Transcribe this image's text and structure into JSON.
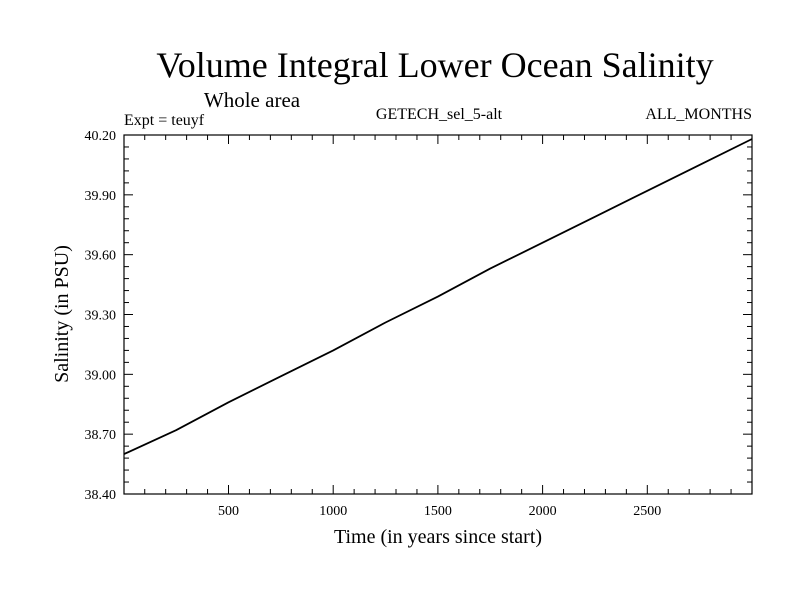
{
  "chart_data": {
    "type": "line",
    "title": "Volume Integral Lower Ocean Salinity",
    "subtitle": "Whole area",
    "expt_label": "Expt = teuyf",
    "run_label": "GETECH_sel_5-alt",
    "months_label": "ALL_MONTHS",
    "xlabel": "Time (in years since start)",
    "ylabel": "Salinity (in PSU)",
    "xlim": [
      1,
      3000
    ],
    "ylim": [
      38.4,
      40.2
    ],
    "x_ticks": [
      500,
      1000,
      1500,
      2000,
      2500
    ],
    "x_tick_labels": [
      "500",
      "1000",
      "1500",
      "2000",
      "2500"
    ],
    "y_ticks": [
      38.4,
      38.7,
      39.0,
      39.3,
      39.6,
      39.9,
      40.2
    ],
    "y_tick_labels": [
      "38.40",
      "38.70",
      "39.00",
      "39.30",
      "39.60",
      "39.90",
      "40.20"
    ],
    "grid": false,
    "series": [
      {
        "x": [
          1,
          250,
          500,
          750,
          1000,
          1250,
          1500,
          1750,
          2000,
          2250,
          2500,
          2750,
          3000
        ],
        "values": [
          38.6,
          38.72,
          38.86,
          38.99,
          39.12,
          39.26,
          39.39,
          39.53,
          39.66,
          39.79,
          39.92,
          40.05,
          40.18
        ]
      }
    ]
  }
}
